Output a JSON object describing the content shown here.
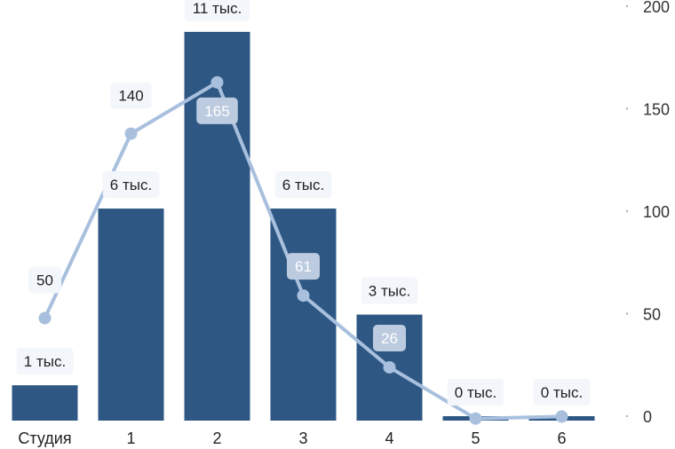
{
  "chart_data": {
    "type": "bar",
    "categories": [
      "Студия",
      "1",
      "2",
      "3",
      "4",
      "5",
      "6"
    ],
    "series": [
      {
        "type": "bar",
        "axis": "left",
        "values": [
          1,
          6,
          11,
          6,
          3,
          0,
          0
        ],
        "labels": [
          "1 тыс.",
          "6 тыс.",
          "11 тыс.",
          "6 тыс.",
          "3 тыс.",
          "0 тыс.",
          "0 тыс."
        ],
        "color": "#2e5783"
      },
      {
        "type": "line",
        "axis": "right",
        "values": [
          50,
          140,
          165,
          61,
          26,
          1,
          2
        ],
        "labels": [
          "50",
          "140",
          "165",
          "61",
          "26",
          "",
          ""
        ],
        "color": "#a8c0de"
      }
    ],
    "left_axis": {
      "range": [
        0,
        11.6
      ]
    },
    "right_axis": {
      "range": [
        0,
        200
      ],
      "ticks": [
        "0",
        "50",
        "100",
        "150",
        "200"
      ]
    },
    "grid": false,
    "legend": "none"
  }
}
